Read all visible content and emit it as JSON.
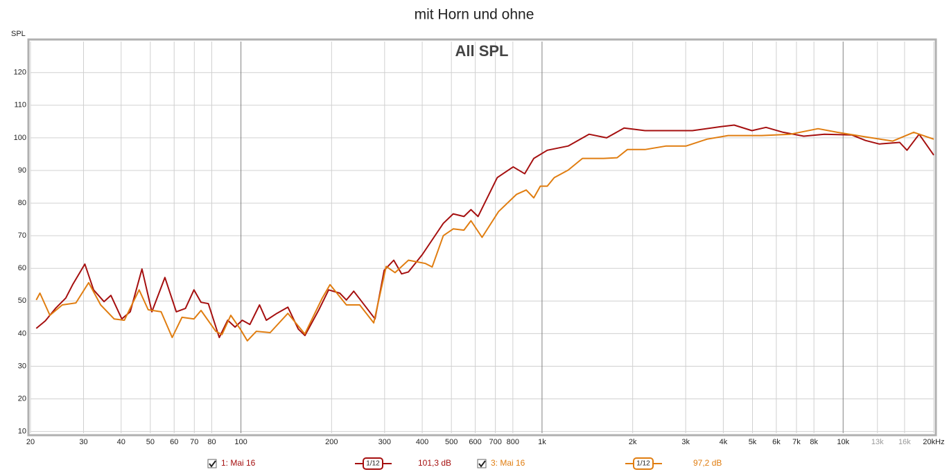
{
  "chart_data": {
    "type": "line",
    "title": "mit Horn und ohne",
    "subtitle": "All SPL",
    "y_label": "SPL",
    "x_scale": "log",
    "grid": true,
    "xlim": [
      20,
      20000
    ],
    "ylim": [
      9.5,
      129.5
    ],
    "xticks": [
      20,
      30,
      40,
      50,
      60,
      70,
      80,
      100,
      200,
      300,
      400,
      500,
      600,
      700,
      800,
      {
        "value": 1000,
        "label": "1k"
      },
      {
        "value": 2000,
        "label": "2k"
      },
      {
        "value": 3000,
        "label": "3k"
      },
      {
        "value": 4000,
        "label": "4k"
      },
      {
        "value": 5000,
        "label": "5k"
      },
      {
        "value": 6000,
        "label": "6k"
      },
      {
        "value": 7000,
        "label": "7k"
      },
      {
        "value": 8000,
        "label": "8k"
      },
      {
        "value": 10000,
        "label": "10k"
      },
      {
        "value": 13000,
        "label": "13k"
      },
      {
        "value": 16000,
        "label": "16k"
      },
      {
        "value": 20000,
        "label": "20kHz"
      }
    ],
    "yticks": [
      10,
      20,
      30,
      40,
      50,
      60,
      70,
      80,
      90,
      100,
      110,
      120
    ],
    "series": [
      {
        "name": "1: Mai 16",
        "smoothing": "1/12",
        "level": "101,3 dB",
        "color": "#a50f0f",
        "x": [
          20.9,
          22.4,
          24.2,
          26.2,
          27.6,
          30.3,
          32.4,
          35.1,
          37.0,
          40.2,
          42.9,
          46.9,
          50.6,
          55.9,
          61.0,
          65.4,
          69.8,
          73.7,
          77.9,
          84.7,
          90.4,
          95.6,
          101,
          107.1,
          115.3,
          121.4,
          131.6,
          143.2,
          155,
          163.1,
          181.5,
          195.6,
          212.9,
          224,
          236.9,
          278.8,
          299,
          321.8,
          341.7,
          360,
          400,
          470.1,
          507,
          550.3,
          580.6,
          613,
          710,
          802,
          876,
          939,
          1041,
          1221,
          1432,
          1639,
          1873,
          2198,
          2710,
          3158,
          3907,
          4346,
          4979,
          5543,
          6323,
          7402,
          8663,
          10676,
          11866,
          13185,
          15420,
          16300,
          17886,
          20000
        ],
        "values": [
          41.6,
          43.9,
          47.7,
          50.9,
          55,
          61.3,
          53.4,
          49.8,
          51.7,
          44.5,
          46.7,
          59.8,
          46.7,
          57.2,
          46.7,
          47.7,
          53.4,
          49.6,
          49.2,
          38.8,
          44.1,
          42,
          44.1,
          42.8,
          48.8,
          44.1,
          46.2,
          48.1,
          41.4,
          39.4,
          47.3,
          53.4,
          52.4,
          50.3,
          53,
          44.5,
          59.4,
          62.5,
          58.3,
          58.9,
          64.2,
          73.8,
          76.7,
          75.9,
          78,
          75.9,
          87.8,
          91.1,
          89,
          93.7,
          96.2,
          97.5,
          101.1,
          100,
          103,
          102.2,
          102.2,
          102.2,
          103.4,
          103.9,
          102.2,
          103.2,
          101.7,
          100.5,
          101.1,
          100.9,
          99.2,
          98.1,
          98.6,
          96.2,
          101.1,
          94.7
        ]
      },
      {
        "name": "3: Mai 16",
        "smoothing": "1/12",
        "level": "97,2 dB",
        "color": "#e07d10",
        "x": [
          20.9,
          21.5,
          23.2,
          25.5,
          28.3,
          31.2,
          34.2,
          37.9,
          41.0,
          45.9,
          49.2,
          54.3,
          59.1,
          63.7,
          69.8,
          73.7,
          82.5,
          86.5,
          92.5,
          99.5,
          105,
          112.5,
          125,
          143.2,
          163,
          186.3,
          197.6,
          224,
          248,
          276,
          303.6,
          325,
          360,
          410,
          431.6,
          470,
          507,
          550,
          580.6,
          632,
          717,
          823,
          886,
          939,
          987,
          1041,
          1098,
          1221,
          1362,
          1600,
          1775,
          1920,
          2198,
          2584,
          3010,
          3532,
          4152,
          5362,
          6679,
          8254,
          9560,
          11866,
          14617,
          17160,
          20000
        ],
        "values": [
          50.3,
          52.4,
          45.6,
          48.8,
          49.4,
          55.6,
          48.8,
          44.5,
          44.1,
          53.4,
          47.3,
          46.7,
          38.8,
          45,
          44.5,
          47.1,
          40.7,
          39.7,
          45.6,
          41.4,
          37.8,
          40.7,
          40.3,
          46.2,
          39.9,
          50.9,
          55,
          48.8,
          48.8,
          43.3,
          60.6,
          58.7,
          62.5,
          61.5,
          60.4,
          70,
          72.1,
          71.7,
          74.6,
          69.5,
          77.4,
          82.7,
          84,
          81.6,
          85.2,
          85.2,
          87.8,
          90.1,
          93.7,
          93.7,
          93.9,
          96.4,
          96.4,
          97.5,
          97.5,
          99.6,
          100.7,
          100.7,
          101.1,
          102.8,
          101.7,
          100.3,
          99,
          101.7,
          99.6
        ]
      }
    ]
  }
}
